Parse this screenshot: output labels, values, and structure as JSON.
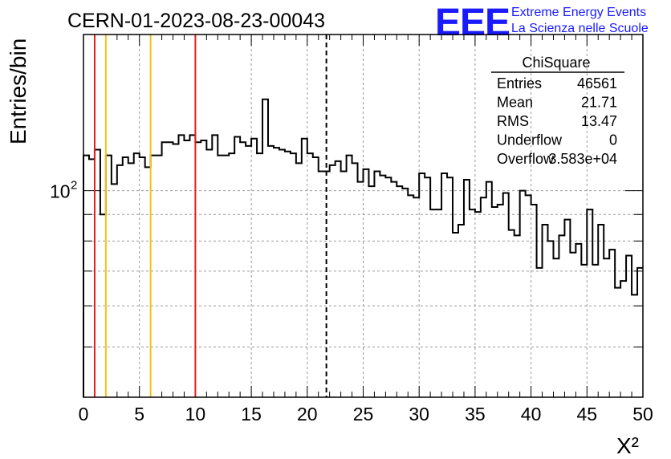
{
  "header": {
    "run_id": "CERN-01-2023-08-23-00043",
    "logo_text": "EEE",
    "logo_line1": "Extreme Energy Events",
    "logo_line2": "La Scienza nelle Scuole",
    "logo_color": "#1a1aff"
  },
  "stats": {
    "title": "ChiSquare",
    "rows": [
      {
        "label": "Entries",
        "value": "46561"
      },
      {
        "label": "Mean",
        "value": "21.71"
      },
      {
        "label": "RMS",
        "value": "13.47"
      },
      {
        "label": "Underflow",
        "value": "0"
      },
      {
        "label": "Overflow",
        "value": "3.583e+04"
      }
    ]
  },
  "chart_data": {
    "type": "histogram",
    "title": "CERN-01-2023-08-23-00043",
    "xlabel": "X²",
    "ylabel": "Entries/bin",
    "xlim": [
      0,
      50
    ],
    "ylim": [
      40,
      200
    ],
    "log_y": true,
    "grid": true,
    "bin_width": 0.5,
    "x_ticks": [
      0,
      5,
      10,
      15,
      20,
      25,
      30,
      35,
      40,
      45,
      50
    ],
    "y_tick_labels": [
      {
        "value": 100,
        "base": "10",
        "exp": "2"
      }
    ],
    "values": [
      117,
      115,
      120,
      90,
      117,
      103,
      112,
      116,
      113,
      118,
      116,
      111,
      117,
      117,
      124,
      124,
      123,
      128,
      125,
      128,
      124,
      125,
      120,
      128,
      117,
      117,
      118,
      127,
      124,
      122,
      126,
      118,
      150,
      122,
      121,
      120,
      119,
      118,
      113,
      126,
      118,
      116,
      109,
      109,
      112,
      114,
      109,
      117,
      113,
      104,
      110,
      102,
      109,
      107,
      106,
      104,
      102,
      101,
      98,
      97,
      108,
      106,
      92,
      92,
      108,
      106,
      83,
      86,
      105,
      92,
      91,
      97,
      104,
      93,
      94,
      99,
      84,
      82,
      100,
      98,
      94,
      71,
      86,
      80,
      74,
      82,
      88,
      76,
      79,
      72,
      92,
      72,
      86,
      74,
      77,
      65,
      67,
      75,
      63,
      71
    ],
    "vertical_lines": [
      {
        "x": 1,
        "color": "#e0201b",
        "style": "solid"
      },
      {
        "x": 2,
        "color": "#f2c21b",
        "style": "solid"
      },
      {
        "x": 6,
        "color": "#f2c21b",
        "style": "solid"
      },
      {
        "x": 10,
        "color": "#e0201b",
        "style": "solid"
      },
      {
        "x": 21.71,
        "color": "#000000",
        "style": "dashed"
      }
    ]
  }
}
